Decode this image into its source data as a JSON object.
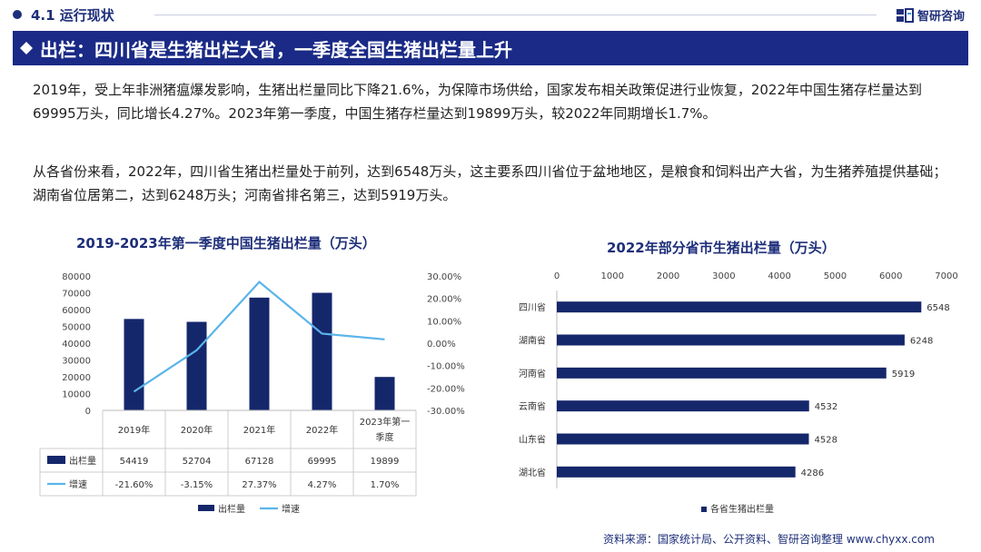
{
  "header": {
    "section_title": "4.1 运行现状",
    "brand_name": "智研咨询",
    "banner_title": "出栏：四川省是生猪出栏大省，一季度全国生猪出栏量上升"
  },
  "paragraphs": [
    "2019年，受上年非洲猪瘟爆发影响，生猪出栏量同比下降21.6%，为保障市场供给，国家发布相关政策促进行业恢复，2022年中国生猪存栏量达到69995万头，同比增长4.27%。2023年第一季度，中国生猪存栏量达到19899万头，较2022年同期增长1.7%。",
    "从各省份来看，2022年，四川省生猪出栏量处于前列，达到6548万头，这主要系四川省位于盆地地区，是粮食和饲料出产大省，为生猪养殖提供基础；湖南省位居第二，达到6248万头；河南省排名第三，达到5919万头。"
  ],
  "source": "资料来源：国家统计局、公开资料、智研咨询整理 www.chyxx.com",
  "colors": {
    "navy": "#1a2a86",
    "bar": "#15276b",
    "line": "#5ab4ea"
  },
  "chart_data": [
    {
      "type": "bar",
      "title": "2019-2023年第一季度中国生猪出栏量（万头）",
      "categories": [
        "2019年",
        "2020年",
        "2021年",
        "2022年",
        "2023年第一季度"
      ],
      "category_lines": [
        [
          "2019年"
        ],
        [
          "2020年"
        ],
        [
          "2021年"
        ],
        [
          "2022年"
        ],
        [
          "2023年第一",
          "季度"
        ]
      ],
      "series": [
        {
          "name": "出栏量",
          "type": "bar",
          "axis": "left",
          "values": [
            54419,
            52704,
            67128,
            69995,
            19899
          ],
          "labels": [
            "54419",
            "52704",
            "67128",
            "69995",
            "19899"
          ]
        },
        {
          "name": "增速",
          "type": "line",
          "axis": "right",
          "values": [
            -21.6,
            -3.15,
            27.37,
            4.27,
            1.7
          ],
          "labels": [
            "-21.60%",
            "-3.15%",
            "27.37%",
            "4.27%",
            "1.70%"
          ]
        }
      ],
      "ylim": [
        0,
        80000
      ],
      "yticks": [
        "0",
        "10000",
        "20000",
        "30000",
        "40000",
        "50000",
        "60000",
        "70000",
        "80000"
      ],
      "y2lim": [
        -30,
        30
      ],
      "y2ticks": [
        "-30.00%",
        "-20.00%",
        "-10.00%",
        "0.00%",
        "10.00%",
        "20.00%",
        "30.00%"
      ],
      "data_table": true,
      "legend": "bottom"
    },
    {
      "type": "bar",
      "orientation": "horizontal",
      "title": "2022年部分省市生猪出栏量（万头）",
      "categories": [
        "四川省",
        "湖南省",
        "河南省",
        "云南省",
        "山东省",
        "湖北省"
      ],
      "series": [
        {
          "name": "各省生猪出栏量",
          "values": [
            6548,
            6248,
            5919,
            4532,
            4528,
            4286
          ],
          "labels": [
            "6548",
            "6248",
            "5919",
            "4532",
            "4528",
            "4286"
          ]
        }
      ],
      "xlim": [
        0,
        7000
      ],
      "xticks": [
        "0",
        "1000",
        "2000",
        "3000",
        "4000",
        "5000",
        "6000",
        "7000"
      ],
      "xaxis_position": "top",
      "legend": "bottom"
    }
  ]
}
